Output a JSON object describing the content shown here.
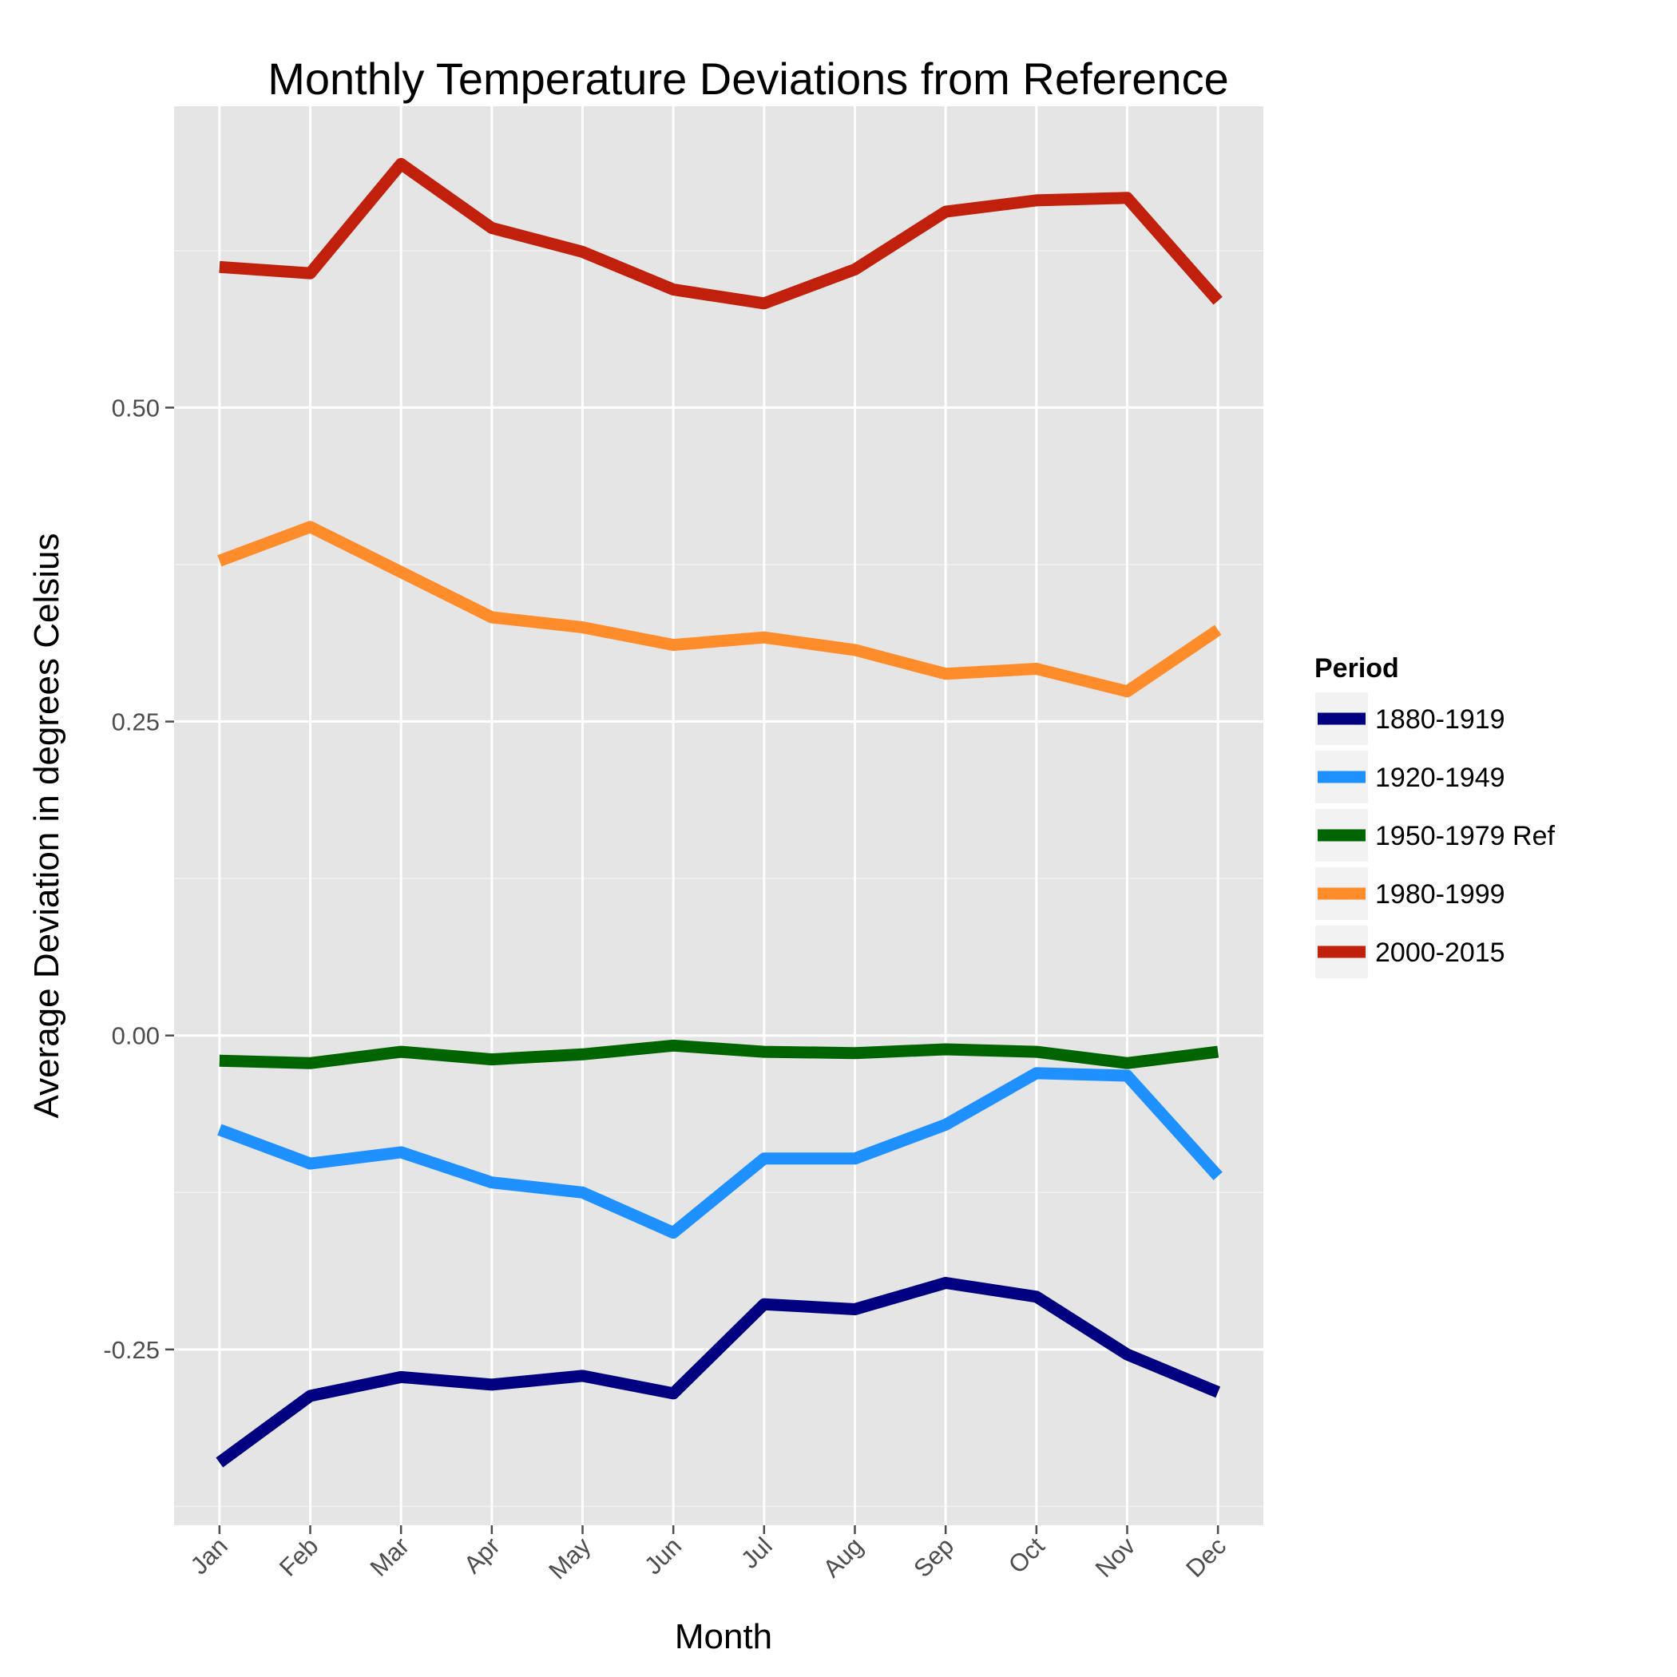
{
  "chart_data": {
    "type": "line",
    "title": "Monthly Temperature Deviations from Reference",
    "xlabel": "Month",
    "ylabel": "Average Deviation in degrees Celsius",
    "categories": [
      "Jan",
      "Feb",
      "Mar",
      "Apr",
      "May",
      "Jun",
      "Jul",
      "Aug",
      "Sep",
      "Oct",
      "Nov",
      "Dec"
    ],
    "ylim": [
      -0.39,
      0.74
    ],
    "yticks": [
      -0.25,
      0.0,
      0.25,
      0.5
    ],
    "ytick_labels": [
      "-0.25",
      "0.00",
      "0.25",
      "0.50"
    ],
    "grid": true,
    "legend": {
      "title": "Period",
      "position": "right"
    },
    "series": [
      {
        "name": "1880-1919",
        "color": "#000080",
        "values": [
          -0.34,
          -0.287,
          -0.272,
          -0.278,
          -0.271,
          -0.285,
          -0.214,
          -0.218,
          -0.197,
          -0.208,
          -0.254,
          -0.284
        ]
      },
      {
        "name": "1920-1949",
        "color": "#1e90ff",
        "values": [
          -0.075,
          -0.102,
          -0.093,
          -0.117,
          -0.125,
          -0.157,
          -0.098,
          -0.098,
          -0.071,
          -0.03,
          -0.032,
          -0.112
        ]
      },
      {
        "name": "1950-1979 Ref",
        "color": "#006400",
        "values": [
          -0.02,
          -0.022,
          -0.013,
          -0.019,
          -0.015,
          -0.008,
          -0.013,
          -0.014,
          -0.011,
          -0.013,
          -0.022,
          -0.013
        ]
      },
      {
        "name": "1980-1999",
        "color": "#ff8c2a",
        "values": [
          0.378,
          0.405,
          0.369,
          0.333,
          0.325,
          0.311,
          0.317,
          0.307,
          0.288,
          0.292,
          0.274,
          0.323
        ]
      },
      {
        "name": "2000-2015",
        "color": "#c0200c",
        "values": [
          0.612,
          0.607,
          0.694,
          0.643,
          0.624,
          0.594,
          0.583,
          0.61,
          0.656,
          0.665,
          0.667,
          0.585
        ]
      }
    ]
  }
}
